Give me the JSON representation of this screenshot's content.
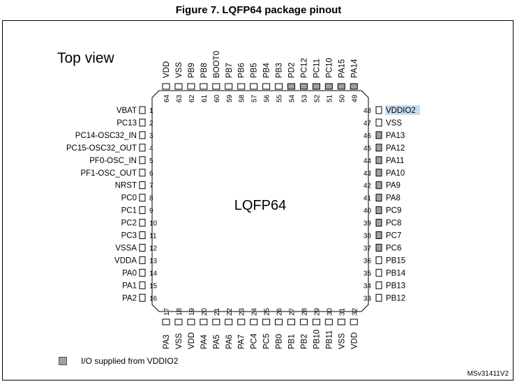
{
  "figure": {
    "title": "Figure 7. LQFP64 package pinout",
    "view_label": "Top view",
    "package_label": "LQFP64",
    "doc_id": "MSv31411V2"
  },
  "legend": {
    "label": "I/O supplied from VDDIO2",
    "color": "#a0a0a0"
  },
  "highlight_color": "#c6ddf0",
  "pins": {
    "left": [
      {
        "num": "1",
        "name": "VBAT",
        "vddio2": false
      },
      {
        "num": "2",
        "name": "PC13",
        "vddio2": false
      },
      {
        "num": "3",
        "name": "PC14-OSC32_IN",
        "vddio2": false
      },
      {
        "num": "4",
        "name": "PC15-OSC32_OUT",
        "vddio2": false
      },
      {
        "num": "5",
        "name": "PF0-OSC_IN",
        "vddio2": false
      },
      {
        "num": "6",
        "name": "PF1-OSC_OUT",
        "vddio2": false
      },
      {
        "num": "7",
        "name": "NRST",
        "vddio2": false
      },
      {
        "num": "8",
        "name": "PC0",
        "vddio2": false
      },
      {
        "num": "9",
        "name": "PC1",
        "vddio2": false
      },
      {
        "num": "10",
        "name": "PC2",
        "vddio2": false
      },
      {
        "num": "11",
        "name": "PC3",
        "vddio2": false
      },
      {
        "num": "12",
        "name": "VSSA",
        "vddio2": false
      },
      {
        "num": "13",
        "name": "VDDA",
        "vddio2": false
      },
      {
        "num": "14",
        "name": "PA0",
        "vddio2": false
      },
      {
        "num": "15",
        "name": "PA1",
        "vddio2": false
      },
      {
        "num": "16",
        "name": "PA2",
        "vddio2": false
      }
    ],
    "right": [
      {
        "num": "48",
        "name": "VDDIO2",
        "vddio2": false,
        "highlighted": true
      },
      {
        "num": "47",
        "name": "VSS",
        "vddio2": false
      },
      {
        "num": "46",
        "name": "PA13",
        "vddio2": true
      },
      {
        "num": "45",
        "name": "PA12",
        "vddio2": true
      },
      {
        "num": "44",
        "name": "PA11",
        "vddio2": true
      },
      {
        "num": "43",
        "name": "PA10",
        "vddio2": true
      },
      {
        "num": "42",
        "name": "PA9",
        "vddio2": true
      },
      {
        "num": "41",
        "name": "PA8",
        "vddio2": true
      },
      {
        "num": "40",
        "name": "PC9",
        "vddio2": true
      },
      {
        "num": "39",
        "name": "PC8",
        "vddio2": true
      },
      {
        "num": "38",
        "name": "PC7",
        "vddio2": true
      },
      {
        "num": "37",
        "name": "PC6",
        "vddio2": true
      },
      {
        "num": "36",
        "name": "PB15",
        "vddio2": false
      },
      {
        "num": "35",
        "name": "PB14",
        "vddio2": false
      },
      {
        "num": "34",
        "name": "PB13",
        "vddio2": false
      },
      {
        "num": "33",
        "name": "PB12",
        "vddio2": false
      }
    ],
    "top": [
      {
        "num": "64",
        "name": "VDD",
        "vddio2": false
      },
      {
        "num": "63",
        "name": "VSS",
        "vddio2": false
      },
      {
        "num": "62",
        "name": "PB9",
        "vddio2": false
      },
      {
        "num": "61",
        "name": "PB8",
        "vddio2": false
      },
      {
        "num": "60",
        "name": "BOOT0",
        "vddio2": false
      },
      {
        "num": "59",
        "name": "PB7",
        "vddio2": false
      },
      {
        "num": "58",
        "name": "PB6",
        "vddio2": false
      },
      {
        "num": "57",
        "name": "PB5",
        "vddio2": false
      },
      {
        "num": "56",
        "name": "PB4",
        "vddio2": false
      },
      {
        "num": "55",
        "name": "PB3",
        "vddio2": false
      },
      {
        "num": "54",
        "name": "PD2",
        "vddio2": true
      },
      {
        "num": "53",
        "name": "PC12",
        "vddio2": true
      },
      {
        "num": "52",
        "name": "PC11",
        "vddio2": true
      },
      {
        "num": "51",
        "name": "PC10",
        "vddio2": true
      },
      {
        "num": "50",
        "name": "PA15",
        "vddio2": true
      },
      {
        "num": "49",
        "name": "PA14",
        "vddio2": true
      }
    ],
    "bottom": [
      {
        "num": "17",
        "name": "PA3",
        "vddio2": false
      },
      {
        "num": "18",
        "name": "VSS",
        "vddio2": false
      },
      {
        "num": "19",
        "name": "VDD",
        "vddio2": false
      },
      {
        "num": "20",
        "name": "PA4",
        "vddio2": false
      },
      {
        "num": "21",
        "name": "PA5",
        "vddio2": false
      },
      {
        "num": "22",
        "name": "PA6",
        "vddio2": false
      },
      {
        "num": "23",
        "name": "PA7",
        "vddio2": false
      },
      {
        "num": "24",
        "name": "PC4",
        "vddio2": false
      },
      {
        "num": "25",
        "name": "PC5",
        "vddio2": false
      },
      {
        "num": "26",
        "name": "PB0",
        "vddio2": false
      },
      {
        "num": "27",
        "name": "PB1",
        "vddio2": false
      },
      {
        "num": "28",
        "name": "PB2",
        "vddio2": false
      },
      {
        "num": "29",
        "name": "PB10",
        "vddio2": false
      },
      {
        "num": "30",
        "name": "PB11",
        "vddio2": false
      },
      {
        "num": "31",
        "name": "VSS",
        "vddio2": false
      },
      {
        "num": "32",
        "name": "VDD",
        "vddio2": false
      }
    ]
  }
}
